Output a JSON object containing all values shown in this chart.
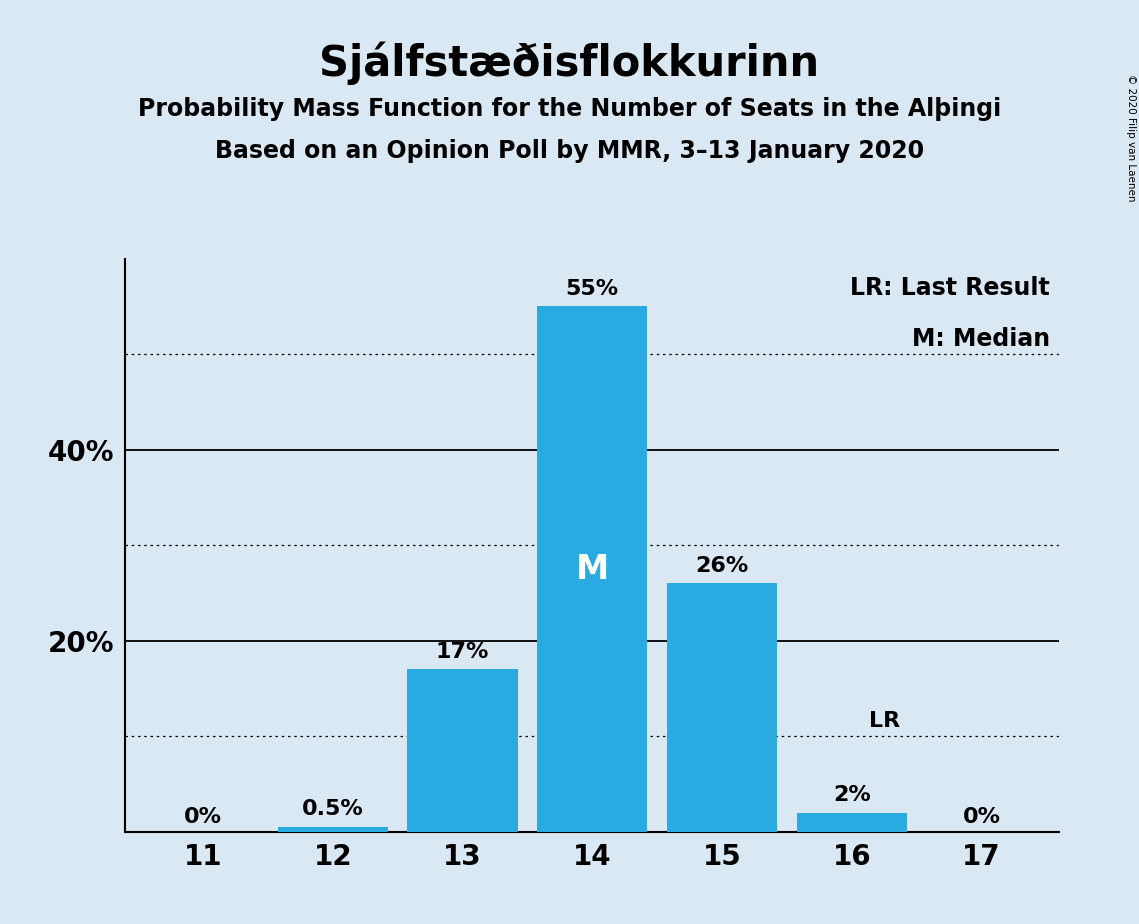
{
  "title": "Sjálfstæðisflokkurinn",
  "subtitle1": "Probability Mass Function for the Number of Seats in the Alþingi",
  "subtitle2": "Based on an Opinion Poll by MMR, 3–13 January 2020",
  "copyright": "© 2020 Filip van Laenen",
  "categories": [
    11,
    12,
    13,
    14,
    15,
    16,
    17
  ],
  "values": [
    0.0,
    0.5,
    17.0,
    55.0,
    26.0,
    2.0,
    0.0
  ],
  "labels": [
    "0%",
    "0.5%",
    "17%",
    "55%",
    "26%",
    "2%",
    "0%"
  ],
  "bar_color": "#29ABE2",
  "background_color": "#DAE8F4",
  "median_bar": 14,
  "last_result_bar": 16,
  "median_label": "M",
  "lr_label": "LR",
  "legend_lr": "LR: Last Result",
  "legend_m": "M: Median",
  "ylim": [
    0,
    60
  ],
  "solid_yticks": [
    20,
    40
  ],
  "dotted_yticks": [
    10,
    30,
    50
  ],
  "title_fontsize": 30,
  "subtitle_fontsize": 17,
  "label_fontsize": 16,
  "tick_fontsize": 20,
  "legend_fontsize": 17,
  "median_label_color": "white",
  "median_label_fontsize": 24,
  "ytick_positions": [
    20,
    40
  ],
  "ytick_labels": [
    "20%",
    "40%"
  ]
}
